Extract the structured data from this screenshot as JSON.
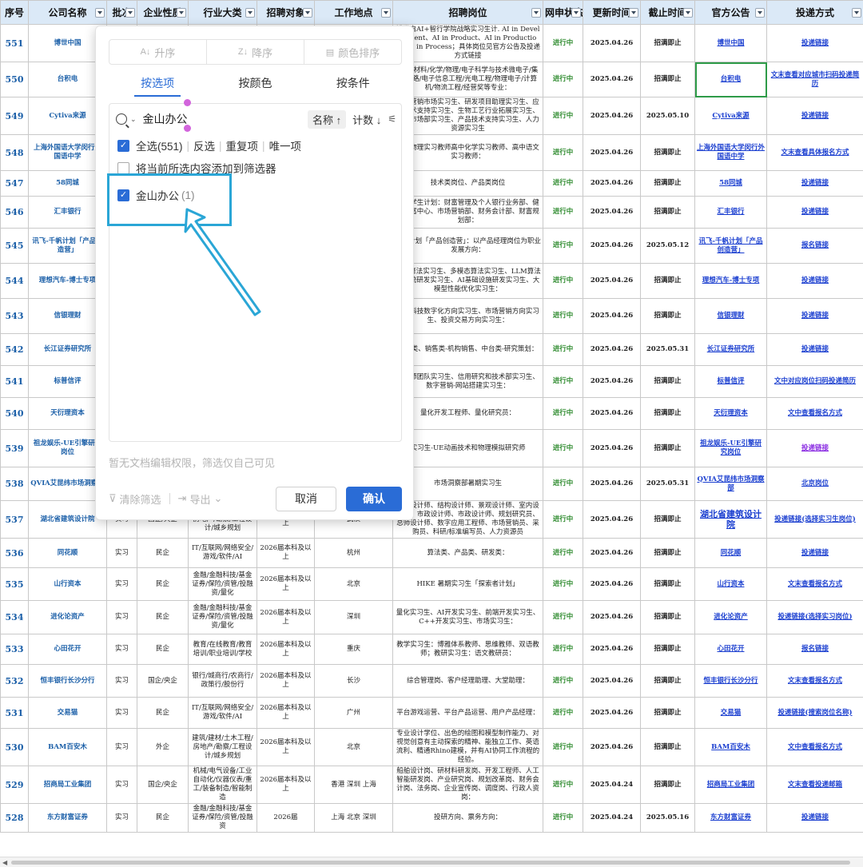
{
  "headers": [
    "序号",
    "公司名称",
    "批次",
    "企业性质",
    "行业大类",
    "招聘对象",
    "工作地点",
    "招聘岗位",
    "网申状态",
    "更新时间",
    "截止时间",
    "官方公告",
    "投递方式"
  ],
  "rows": [
    {
      "no": "551",
      "company": "博世中国",
      "batch": "",
      "nature": "",
      "industry": "",
      "target": "",
      "location": "",
      "positions": "博世启AI+智行学院战略实习生计. AI in Development、AI in Product、AI in Production、AI in Process；具体岗位见官方公告及投递方式链接",
      "status": "进行中",
      "updated": "2025.04.26",
      "deadline": "招满即止",
      "notice": "博世中国",
      "apply": "投递链接"
    },
    {
      "no": "550",
      "company": "台积电",
      "batch": "",
      "nature": "",
      "industry": "",
      "target": "",
      "location": "",
      "positions": "机械/材料/化学/物理/电子科学与技术微电子/集成电路/电子信息工程/光电工程/物理电子/计算机/物流工程/经营奖等专业：",
      "status": "进行中",
      "updated": "2025.04.26",
      "deadline": "招满即止",
      "notice": "台积电",
      "apply": "文末查看对应城市扫码投递简历"
    },
    {
      "no": "549",
      "company": "Cytiva来源",
      "batch": "",
      "nature": "",
      "industry": "",
      "target": "",
      "location": "",
      "positions": "数字营销市场实习生、研发项目助理实习生、应用技术支持实习生、生物工艺行业拓展实习生、产品市场部实习生、产品技术支持实习生、人力资源实习生",
      "status": "进行中",
      "updated": "2025.04.26",
      "deadline": "2025.05.10",
      "notice": "Cytiva来源",
      "apply": "投递链接"
    },
    {
      "no": "548",
      "company": "上海外国语大学闵行外国语中学",
      "batch": "",
      "nature": "",
      "industry": "",
      "target": "",
      "location": "",
      "positions": "高中物理实习教师高中化学实习教师、高中语文实习教师：",
      "status": "进行中",
      "updated": "2025.04.26",
      "deadline": "招满即止",
      "notice": "上海外国语大学闵行外国语中学",
      "apply": "文末查看具体报名方式"
    },
    {
      "no": "547",
      "company": "58同城",
      "batch": "",
      "nature": "",
      "industry": "",
      "target": "",
      "location": "",
      "positions": "技术类岗位、产品类岗位",
      "status": "进行中",
      "updated": "2025.04.26",
      "deadline": "招满即止",
      "notice": "58同城",
      "apply": "投递链接"
    },
    {
      "no": "546",
      "company": "汇丰银行",
      "batch": "",
      "nature": "",
      "industry": "",
      "target": "",
      "location": "",
      "positions": "中国学生计划：财富管理及个人银行业务部、健康财富中心、市场营销部、财务会计部、财富规划部：",
      "status": "进行中",
      "updated": "2025.04.26",
      "deadline": "招满即止",
      "notice": "汇丰银行",
      "apply": "投递链接"
    },
    {
      "no": "545",
      "company": "讯飞-千帆计划「产品创造营」",
      "batch": "",
      "nature": "",
      "industry": "",
      "target": "",
      "location": "",
      "positions": "千帆计划「产品创造营」：以产品经理岗位为职业发展方向：",
      "status": "进行中",
      "updated": "2025.04.26",
      "deadline": "2025.05.12",
      "notice": "讯飞-千帆计划「产品创造营」",
      "apply": "报名链接"
    },
    {
      "no": "544",
      "company": "理想汽车-博士专项",
      "batch": "",
      "nature": "",
      "industry": "",
      "target": "",
      "location": "",
      "positions": "VLA算法实习生、多模态算法实习生、LLM算法与系统研发实习生、AI基础设施研发实习生、大模型性能优化实习生：",
      "status": "进行中",
      "updated": "2025.04.26",
      "deadline": "招满即止",
      "notice": "理想汽车-博士专项",
      "apply": "投递链接"
    },
    {
      "no": "543",
      "company": "信银理财",
      "batch": "",
      "nature": "",
      "industry": "",
      "target": "",
      "location": "",
      "positions": "金融科技数字化方向实习生、市场营销方向实习生、投资交易方向实习生：",
      "status": "进行中",
      "updated": "2025.04.26",
      "deadline": "招满即止",
      "notice": "信银理财",
      "apply": "投递链接"
    },
    {
      "no": "542",
      "company": "长江证券研究所",
      "batch": "",
      "nature": "",
      "industry": "",
      "target": "",
      "location": "",
      "positions": "研究类、销售类-机构销售、中台类-研究策划：",
      "status": "进行中",
      "updated": "2025.04.26",
      "deadline": "2025.05.31",
      "notice": "长江证券研究所",
      "apply": "投递链接"
    },
    {
      "no": "541",
      "company": "标普信评",
      "batch": "",
      "nature": "",
      "industry": "",
      "target": "",
      "location": "",
      "positions": "分析师团队实习生、信用研究和技术部实习生、数字营销-网站搭建实习生：",
      "status": "进行中",
      "updated": "2025.04.26",
      "deadline": "招满即止",
      "notice": "标普信评",
      "apply": "文中对应岗位扫码投递简历"
    },
    {
      "no": "540",
      "company": "天衍理资本",
      "batch": "",
      "nature": "",
      "industry": "",
      "target": "",
      "location": "",
      "positions": "量化开发工程师、量化研究员：",
      "status": "进行中",
      "updated": "2025.04.26",
      "deadline": "招满即止",
      "notice": "天衍理资本",
      "apply": "文中查看报名方式"
    },
    {
      "no": "539",
      "company": "祖龙娱乐-UE引擎研究岗位",
      "batch": "",
      "nature": "",
      "industry": "",
      "target": "",
      "location": "",
      "positions": "实习生-UE动画技术和物理模拟研究师",
      "status": "进行中",
      "updated": "2025.04.26",
      "deadline": "招满即止",
      "notice": "祖龙娱乐-UE引擎研究岗位",
      "apply": "投递链接"
    },
    {
      "no": "538",
      "company": "QVIA艾昆纬市场洞察部",
      "batch": "",
      "nature": "",
      "industry": "",
      "target": "",
      "location": "",
      "positions": "市场洞察部暑期实习生",
      "status": "进行中",
      "updated": "2025.04.26",
      "deadline": "2025.05.31",
      "notice": "QVIA艾昆纬市场洞察部",
      "apply": "北京岗位"
    },
    {
      "no": "537",
      "company": "湖北省建筑设计院",
      "batch": "实习",
      "nature": "国企/央企",
      "industry": "建筑/建材/土木工程/房地产/勘察/工程设计/城乡规划",
      "target": "2026届本科及以上",
      "location": "武汉",
      "positions": "建筑设计师、结构设计师、景观设计师、室内设计师、市政设计师、市政设计师、规划研究员、总师设计师、数字应用工程师、市场营销员、采购员、科研/标准编写员、人力资源员",
      "status": "进行中",
      "updated": "2025.04.26",
      "deadline": "招满即止",
      "notice": "湖北省建筑设计院",
      "apply": "投递链接(选择实习生岗位)"
    },
    {
      "no": "536",
      "company": "同花顺",
      "batch": "实习",
      "nature": "民企",
      "industry": "IT/互联网/网络安全/游戏/软件/AI",
      "target": "2026届本科及以上",
      "location": "杭州",
      "positions": "算法类、产品类、研发类：",
      "status": "进行中",
      "updated": "2025.04.26",
      "deadline": "招满即止",
      "notice": "同花顺",
      "apply": "投递链接"
    },
    {
      "no": "535",
      "company": "山行资本",
      "batch": "实习",
      "nature": "民企",
      "industry": "金融/金融科技/基金证券/保险/资管/投融资/量化",
      "target": "2026届本科及以上",
      "location": "北京",
      "positions": "HIKE 暑期实习生「探索者计划」",
      "status": "进行中",
      "updated": "2025.04.26",
      "deadline": "招满即止",
      "notice": "山行资本",
      "apply": "文末查看报名方式"
    },
    {
      "no": "534",
      "company": "进化论资产",
      "batch": "实习",
      "nature": "民企",
      "industry": "金融/金融科技/基金证券/保险/资管/投融资/量化",
      "target": "2026届本科及以上",
      "location": "深圳",
      "positions": "量化实习生、AI开发实习生、前端开发实习生、C++开发实习生、市场实习生：",
      "status": "进行中",
      "updated": "2025.04.26",
      "deadline": "招满即止",
      "notice": "进化论资产",
      "apply": "投递链接(选择实习岗位)"
    },
    {
      "no": "533",
      "company": "心田花开",
      "batch": "实习",
      "nature": "民企",
      "industry": "教育/在线教育/教育培训/职业培训/学校",
      "target": "2026届本科及以上",
      "location": "重庆",
      "positions": "教学实习生：博雅体系教师、思维教师、双语教师；教研实习生：语文教研员：",
      "status": "进行中",
      "updated": "2025.04.26",
      "deadline": "招满即止",
      "notice": "心田花开",
      "apply": "报名链接"
    },
    {
      "no": "532",
      "company": "恒丰银行长沙分行",
      "batch": "实习",
      "nature": "国企/央企",
      "industry": "银行/城商行/农商行/政策行/股份行",
      "target": "2026届本科及以上",
      "location": "长沙",
      "positions": "综合管理岗、客户经理助理、大堂助理：",
      "status": "进行中",
      "updated": "2025.04.26",
      "deadline": "招满即止",
      "notice": "恒丰银行长沙分行",
      "apply": "文末查看报名方式"
    },
    {
      "no": "531",
      "company": "交易猫",
      "batch": "实习",
      "nature": "民企",
      "industry": "IT/互联网/网络安全/游戏/软件/AI",
      "target": "2026届本科及以上",
      "location": "广州",
      "positions": "平台游戏运营、平台产品运营、用户产品经理：",
      "status": "进行中",
      "updated": "2025.04.26",
      "deadline": "招满即止",
      "notice": "交易猫",
      "apply": "投递链接(搜索岗位名称)"
    },
    {
      "no": "530",
      "company": "BAM百安木",
      "batch": "实习",
      "nature": "外企",
      "industry": "建筑/建材/土木工程/房地产/勘察/工程设计/城乡规划",
      "target": "2026届本科及以上",
      "location": "北京",
      "positions": "专业设计学位、出色的绘图和模型制作能力、对视觉创意有主动探索的精神、能独立工作、英语流利、精通Rhino建模，并有AI协同工作流程的经验。",
      "status": "进行中",
      "updated": "2025.04.26",
      "deadline": "招满即止",
      "notice": "BAM百安木",
      "apply": "文中查看报名方式"
    },
    {
      "no": "529",
      "company": "招商局工业集团",
      "batch": "实习",
      "nature": "国企/央企",
      "industry": "机械/电气设备/工业自动化/仪器仪表/重工/装备制造/智能制造",
      "target": "2026届本科及以上",
      "location": "香港 深圳 上海",
      "positions": "船舶设计岗、研材料研发岗、开发工程师、人工智能研发岗、产业研究岗、规划改革岗、财务会计岗、法务岗、企业宣传岗、调度岗、行政人资岗：",
      "status": "进行中",
      "updated": "2025.04.24",
      "deadline": "招满即止",
      "notice": "招商局工业集团",
      "apply": "文末查看投递邮箱"
    },
    {
      "no": "528",
      "company": "东方财富证券",
      "batch": "实习",
      "nature": "民企",
      "industry": "金融/金融科技/基金证券/保险/资管/投融资",
      "target": "2026届",
      "location": "上海 北京 深圳",
      "positions": "投研方向、票务方向：",
      "status": "进行中",
      "updated": "2025.04.24",
      "deadline": "2025.05.16",
      "notice": "东方财富证券",
      "apply": "投递链接"
    }
  ],
  "filter": {
    "sort_asc": "升序",
    "sort_desc": "降序",
    "sort_color": "颜色排序",
    "tab_items": "按选项",
    "tab_color": "按颜色",
    "tab_condition": "按条件",
    "search_value": "金山办公",
    "sort_by_name": "名称 ↑",
    "sort_by_count": "计数 ↓",
    "select_all": "全选(551)",
    "invert": "反选",
    "duplicates": "重复项",
    "unique": "唯一项",
    "add_to_filter": "将当前所选内容添加到筛选器",
    "result_label": "金山办公",
    "result_count": "(1)",
    "note": "暂无文档编辑权限，筛选仅自己可见",
    "clear": "清除筛选",
    "export": "导出",
    "cancel": "取消",
    "confirm": "确认"
  },
  "colors": {
    "accent": "#2a6cd6",
    "header_bg": "#dbe9f7",
    "status_green": "#2e8b2e",
    "link_blue": "#1b3fd0",
    "annotation": "#2aa6d6"
  }
}
